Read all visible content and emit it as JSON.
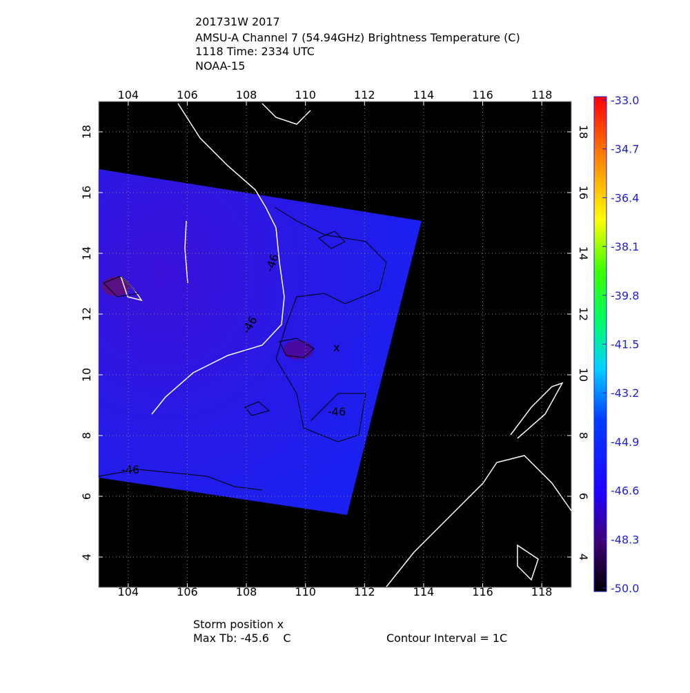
{
  "header": {
    "lines": [
      "201731W 2017",
      "AMSU-A Channel 7 (54.94GHz) Brightness Temperature (C)",
      "1118 Time: 2334 UTC",
      "NOAA-15"
    ]
  },
  "map": {
    "xlim": [
      103,
      119
    ],
    "ylim": [
      3,
      19
    ],
    "xticks": [
      104,
      106,
      108,
      110,
      112,
      114,
      116,
      118
    ],
    "yticks": [
      4,
      6,
      8,
      10,
      12,
      14,
      16,
      18
    ],
    "contour_labels": [
      "-46",
      "-46",
      "-46",
      "-46"
    ]
  },
  "colorbar": {
    "range": [
      -50,
      -33
    ],
    "ticks": [
      {
        "value": -33,
        "label": "-33.0"
      },
      -34.7,
      -36.4,
      -38.1,
      -39.8,
      -41.5,
      -43.2,
      -44.9,
      -46.6,
      -48.3,
      {
        "value": -50,
        "label": "-50.0"
      }
    ]
  },
  "footer": {
    "storm_position": "Storm position x",
    "max_tb": "Max Tb: -45.6    C",
    "contour_interval": "Contour Interval = 1C"
  }
}
